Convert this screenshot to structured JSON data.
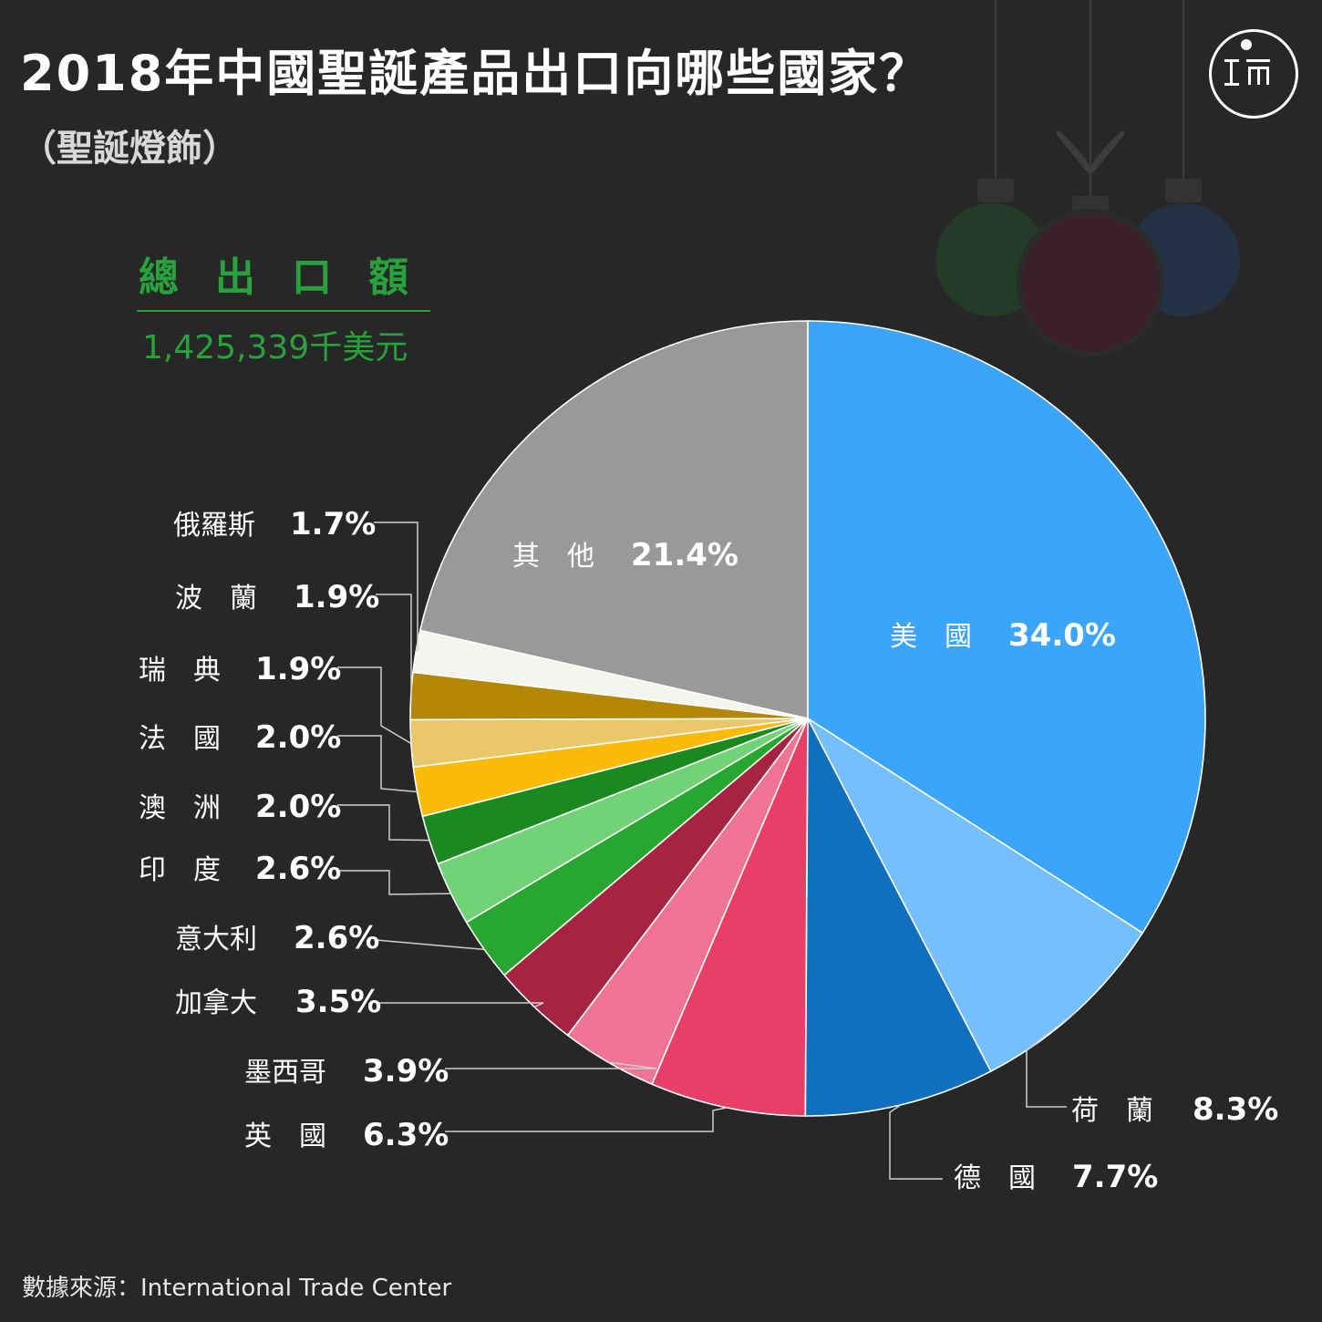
{
  "title": "2018年中國聖誕產品出口向哪些國家？",
  "subtitle": "（聖誕燈飾）",
  "total": {
    "label": "總出口額",
    "value": "1,425,339千美元"
  },
  "source": "數據來源：International Trade Center",
  "colors": {
    "background": "#272727",
    "accent_green": "#27a23c"
  },
  "chart_data": {
    "type": "pie",
    "start": "12 o'clock, clockwise",
    "slices": [
      {
        "name": "美　國",
        "label": "34.0%",
        "value": 34.0,
        "color": "#3aa5fb"
      },
      {
        "name": "荷　蘭",
        "label": "8.3%",
        "value": 8.3,
        "color": "#73bfff"
      },
      {
        "name": "德　國",
        "label": "7.7%",
        "value": 7.7,
        "color": "#1170be"
      },
      {
        "name": "英　國",
        "label": "6.3%",
        "value": 6.3,
        "color": "#e93e65"
      },
      {
        "name": "墨西哥",
        "label": "3.9%",
        "value": 3.9,
        "color": "#f17592"
      },
      {
        "name": "加拿大",
        "label": "3.5%",
        "value": 3.5,
        "color": "#a72342"
      },
      {
        "name": "意大利",
        "label": "2.6%",
        "value": 2.6,
        "color": "#27a72f"
      },
      {
        "name": "印　度",
        "label": "2.6%",
        "value": 2.6,
        "color": "#71d375"
      },
      {
        "name": "澳　洲",
        "label": "2.0%",
        "value": 2.0,
        "color": "#1a8a1e"
      },
      {
        "name": "法　國",
        "label": "2.0%",
        "value": 2.0,
        "color": "#fbbb07"
      },
      {
        "name": "瑞　典",
        "label": "1.9%",
        "value": 1.9,
        "color": "#eac76a"
      },
      {
        "name": "波　蘭",
        "label": "1.9%",
        "value": 1.9,
        "color": "#b38603"
      },
      {
        "name": "俄羅斯",
        "label": "1.7%",
        "value": 1.7,
        "color": "#f5f4ef"
      },
      {
        "name": "其　他",
        "label": "21.4%",
        "value": 21.4,
        "color": "#999999"
      }
    ]
  }
}
